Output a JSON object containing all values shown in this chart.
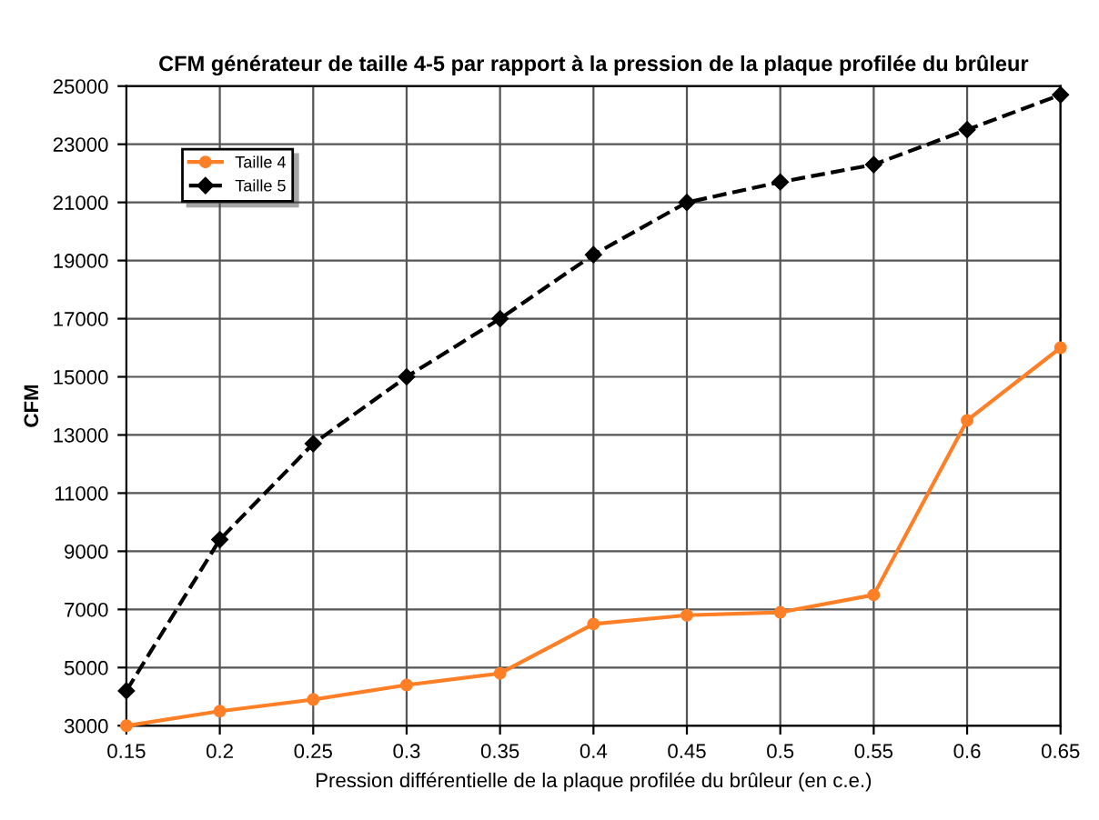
{
  "chart_data": {
    "type": "line",
    "title": "CFM générateur de taille 4-5 par rapport à la pression de la plaque profilée du brûleur",
    "xlabel": "Pression différentielle de la plaque profilée du brûleur (en c.e.)",
    "ylabel": "CFM",
    "x": [
      0.15,
      0.2,
      0.25,
      0.3,
      0.35,
      0.4,
      0.45,
      0.5,
      0.55,
      0.6,
      0.65
    ],
    "series": [
      {
        "name": "Taille 4",
        "color": "#ff7f27",
        "marker": "circle",
        "line_style": "solid",
        "values": [
          3000,
          3500,
          3900,
          4400,
          4800,
          6500,
          6800,
          6900,
          7500,
          13500,
          16000
        ]
      },
      {
        "name": "Taille 5",
        "color": "#000000",
        "marker": "diamond",
        "line_style": "dashed",
        "values": [
          4200,
          9400,
          12700,
          15000,
          17000,
          19200,
          21000,
          21700,
          22300,
          23500,
          24700
        ]
      }
    ],
    "xlim": [
      0.15,
      0.65
    ],
    "xticks": [
      0.15,
      0.2,
      0.25,
      0.3,
      0.35,
      0.4,
      0.45,
      0.5,
      0.55,
      0.6,
      0.65
    ],
    "ylim": [
      3000,
      25000
    ],
    "yticks": [
      3000,
      5000,
      7000,
      9000,
      11000,
      13000,
      15000,
      17000,
      19000,
      21000,
      23000,
      25000
    ],
    "grid": true,
    "legend": "top left"
  }
}
